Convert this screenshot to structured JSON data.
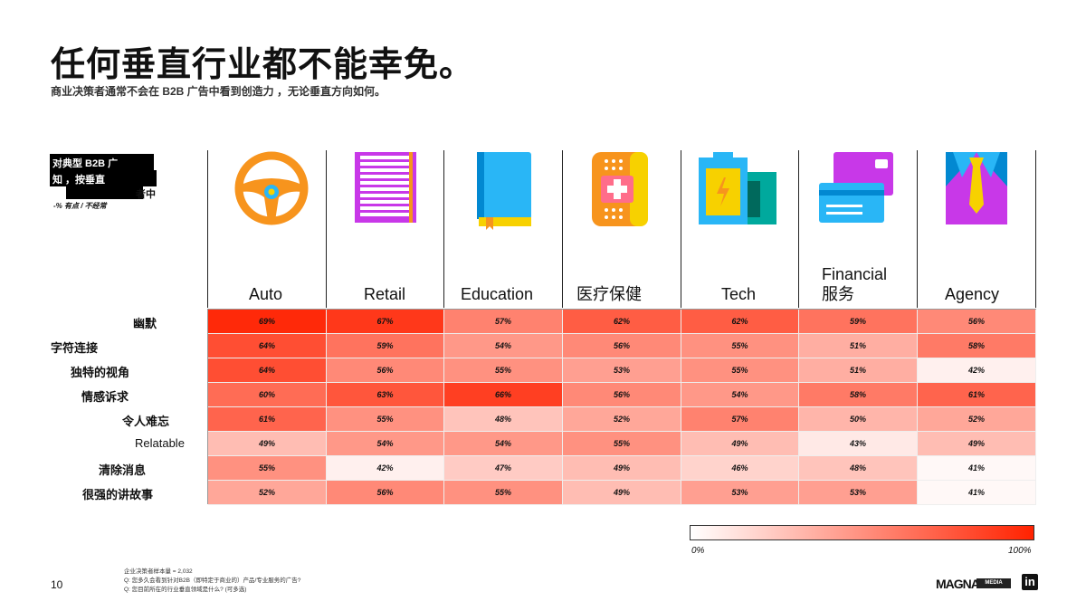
{
  "title": "任何垂直行业都不能幸免。",
  "subtitle": "商业决策者通常不会在 B2B 广告中看到创造力 ，无论垂直方向如何。",
  "legend_box": {
    "line1": "对典型 B2B 广",
    "line2": "知 ，按垂直",
    "line3": "者中",
    "line4": "-% 有点 / 不经常"
  },
  "chart_data": {
    "type": "heatmap",
    "title": "任何垂直行业都不能幸免。",
    "subtitle": "商业决策者通常不会在 B2B 广告中看到创造力 ，无论垂直方向如何。",
    "columns": [
      "Auto",
      "Retail",
      "Education",
      "医疗保健",
      "Tech",
      "Financial\n服务",
      "Agency"
    ],
    "rows": [
      "幽默",
      "字符连接",
      "独特的视角",
      "情感诉求",
      "令人难忘",
      "Relatable",
      "清除消息",
      "很强的讲故事"
    ],
    "values": [
      [
        69,
        67,
        57,
        62,
        62,
        59,
        56
      ],
      [
        64,
        59,
        54,
        56,
        55,
        51,
        58
      ],
      [
        64,
        56,
        55,
        53,
        55,
        51,
        42
      ],
      [
        60,
        63,
        66,
        56,
        54,
        58,
        61
      ],
      [
        61,
        55,
        48,
        52,
        57,
        50,
        52
      ],
      [
        49,
        54,
        54,
        55,
        49,
        43,
        49
      ],
      [
        55,
        42,
        47,
        49,
        46,
        48,
        41
      ],
      [
        52,
        56,
        55,
        49,
        53,
        53,
        41
      ]
    ],
    "value_suffix": "%",
    "color_scale": {
      "min_label": "0%",
      "max_label": "100%",
      "min_color": "#ffffff",
      "max_color": "#ff2200"
    }
  },
  "page_number": "10",
  "footnotes": [
    "企业决策者样本量 = 2,032",
    "Q: 您多久会看到针对B2B（即特定于商业的）产品/专业服务的广告?",
    "Q: 您目前所在的行业垂直领域是什么? (可多选)"
  ],
  "logos": {
    "magna": "MAGNA",
    "media_trials": "MEDIA TRIALS",
    "linkedin": "in"
  },
  "icons": [
    "steering-wheel-icon",
    "shopping-bag-icon",
    "book-icon",
    "medical-kit-icon",
    "battery-icon",
    "credit-card-icon",
    "suit-tie-icon"
  ]
}
